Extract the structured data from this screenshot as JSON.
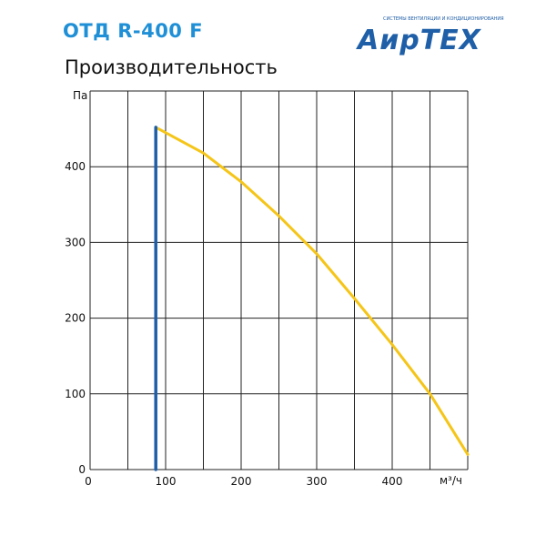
{
  "header": {
    "model": "ОТД R-400 F",
    "brand": "АирТЕХ",
    "brand_tagline": "СИСТЕМЫ ВЕНТИЛЯЦИИ И КОНДИЦИОНИРОВАНИЯ"
  },
  "chart_data": {
    "type": "line",
    "title": "Производительность",
    "xlabel": "м³/ч",
    "ylabel": "Па",
    "xlim": [
      0,
      500
    ],
    "ylim": [
      0,
      500
    ],
    "x_ticks": [
      0,
      100,
      200,
      300,
      400
    ],
    "y_ticks": [
      0,
      100,
      200,
      300,
      400
    ],
    "x_grid": [
      0,
      50,
      100,
      150,
      200,
      250,
      300,
      350,
      400,
      450,
      500
    ],
    "y_grid": [
      0,
      100,
      200,
      300,
      400,
      500
    ],
    "grid": true,
    "series": [
      {
        "color": "#f5c518",
        "points": [
          {
            "x": 87,
            "y": 452
          },
          {
            "x": 150,
            "y": 418
          },
          {
            "x": 200,
            "y": 380
          },
          {
            "x": 250,
            "y": 335
          },
          {
            "x": 300,
            "y": 285
          },
          {
            "x": 350,
            "y": 226
          },
          {
            "x": 400,
            "y": 165
          },
          {
            "x": 450,
            "y": 100
          },
          {
            "x": 500,
            "y": 20
          }
        ]
      },
      {
        "color": "#1f5fa8",
        "points": [
          {
            "x": 87,
            "y": 0
          },
          {
            "x": 87,
            "y": 452
          }
        ]
      }
    ]
  }
}
